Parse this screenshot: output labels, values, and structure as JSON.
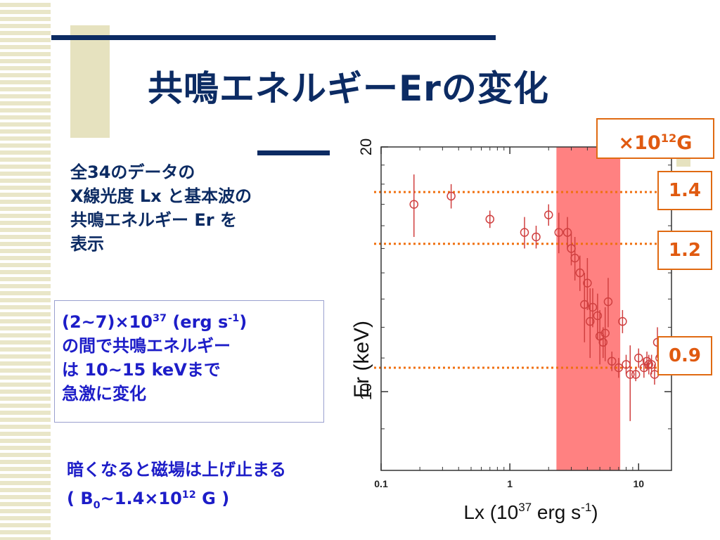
{
  "slide": {
    "title": "共鳴エネルギーErの変化",
    "description": [
      "全34のデータの",
      "X線光度 Lx と基本波の",
      "共鳴エネルギー Er を",
      "表示"
    ],
    "note": {
      "line1_pre": "(2~7)×10",
      "line1_exp": "37",
      "line1_mid": " (erg s",
      "line1_exp2": "-1",
      "line1_post": ")",
      "line2": "の間で共鳴エネルギー",
      "line3": "は 10~15 keVまで",
      "line4": "急激に変化"
    },
    "bottom_note": {
      "line1": "暗くなると磁場は上げ止まる",
      "line2_pre": "( B",
      "line2_sub": "0",
      "line2_mid": "~1.4×10",
      "line2_exp": "12",
      "line2_post": " G )"
    }
  },
  "field_labels": {
    "unit_pre": "×10",
    "unit_exp": "12",
    "unit_post": "G",
    "values": [
      "1.4",
      "1.2",
      "0.9"
    ]
  },
  "colors": {
    "title": "#0c2b63",
    "highlight_band": "#ff6b6b",
    "guide_line": "#f07010",
    "data_points": "#d04040"
  },
  "chart_data": {
    "type": "scatter",
    "xscale": "log",
    "yscale": "log",
    "xlim": [
      0.1,
      18
    ],
    "ylim": [
      8,
      20
    ],
    "x_ticks": [
      "0.1",
      "1",
      "10"
    ],
    "y_ticks": [
      "10",
      "20"
    ],
    "xlabel_pre": "Lx (10",
    "xlabel_exp": "37",
    "xlabel_mid": " erg s",
    "xlabel_exp2": "-1",
    "xlabel_post": ")",
    "ylabel": "Er (keV)",
    "highlight_band_x": [
      2.3,
      7.2
    ],
    "guide_lines_y": [
      17.6,
      15.2,
      10.7
    ],
    "points": [
      {
        "x": 0.18,
        "y": 17.0,
        "lo": 15.5,
        "hi": 18.5
      },
      {
        "x": 0.35,
        "y": 17.4,
        "lo": 16.8,
        "hi": 18.0
      },
      {
        "x": 0.7,
        "y": 16.3,
        "lo": 15.9,
        "hi": 16.7
      },
      {
        "x": 1.3,
        "y": 15.7,
        "lo": 15.0,
        "hi": 16.4
      },
      {
        "x": 1.6,
        "y": 15.5,
        "lo": 15.0,
        "hi": 16.0
      },
      {
        "x": 2.0,
        "y": 16.5,
        "lo": 16.0,
        "hi": 17.0
      },
      {
        "x": 2.4,
        "y": 15.7,
        "lo": 14.8,
        "hi": 16.6
      },
      {
        "x": 2.8,
        "y": 15.7,
        "lo": 15.0,
        "hi": 16.4
      },
      {
        "x": 3.0,
        "y": 15.0,
        "lo": 14.3,
        "hi": 15.7
      },
      {
        "x": 3.2,
        "y": 14.6,
        "lo": 13.7,
        "hi": 15.5
      },
      {
        "x": 3.5,
        "y": 14.0,
        "lo": 13.3,
        "hi": 14.7
      },
      {
        "x": 3.8,
        "y": 12.8,
        "lo": 11.5,
        "hi": 14.0
      },
      {
        "x": 4.0,
        "y": 13.6,
        "lo": 12.6,
        "hi": 14.6
      },
      {
        "x": 4.2,
        "y": 12.2,
        "lo": 11.0,
        "hi": 13.4
      },
      {
        "x": 4.4,
        "y": 12.7,
        "lo": 12.0,
        "hi": 13.4
      },
      {
        "x": 4.8,
        "y": 12.4,
        "lo": 11.6,
        "hi": 13.2
      },
      {
        "x": 5.0,
        "y": 11.7,
        "lo": 10.8,
        "hi": 12.6
      },
      {
        "x": 5.3,
        "y": 11.5,
        "lo": 11.0,
        "hi": 12.0
      },
      {
        "x": 5.5,
        "y": 11.8,
        "lo": 10.9,
        "hi": 12.7
      },
      {
        "x": 5.8,
        "y": 12.9,
        "lo": 12.0,
        "hi": 13.8
      },
      {
        "x": 6.2,
        "y": 10.9,
        "lo": 10.6,
        "hi": 11.2
      },
      {
        "x": 7.0,
        "y": 10.7,
        "lo": 10.4,
        "hi": 11.0
      },
      {
        "x": 7.5,
        "y": 12.2,
        "lo": 11.8,
        "hi": 12.6
      },
      {
        "x": 8.0,
        "y": 10.8,
        "lo": 10.5,
        "hi": 11.1
      },
      {
        "x": 8.6,
        "y": 10.5,
        "lo": 9.2,
        "hi": 11.4
      },
      {
        "x": 9.5,
        "y": 10.5,
        "lo": 10.3,
        "hi": 10.7
      },
      {
        "x": 10.0,
        "y": 11.0,
        "lo": 10.7,
        "hi": 11.3
      },
      {
        "x": 11.0,
        "y": 10.7,
        "lo": 10.4,
        "hi": 11.0
      },
      {
        "x": 11.6,
        "y": 10.9,
        "lo": 10.6,
        "hi": 11.2
      },
      {
        "x": 12.0,
        "y": 10.8,
        "lo": 10.5,
        "hi": 11.1
      },
      {
        "x": 12.6,
        "y": 10.8,
        "lo": 10.5,
        "hi": 11.1
      },
      {
        "x": 13.3,
        "y": 10.5,
        "lo": 10.2,
        "hi": 10.8
      },
      {
        "x": 14.0,
        "y": 11.5,
        "lo": 11.0,
        "hi": 12.0
      },
      {
        "x": 14.6,
        "y": 11.0,
        "lo": 10.6,
        "hi": 11.4
      }
    ]
  }
}
